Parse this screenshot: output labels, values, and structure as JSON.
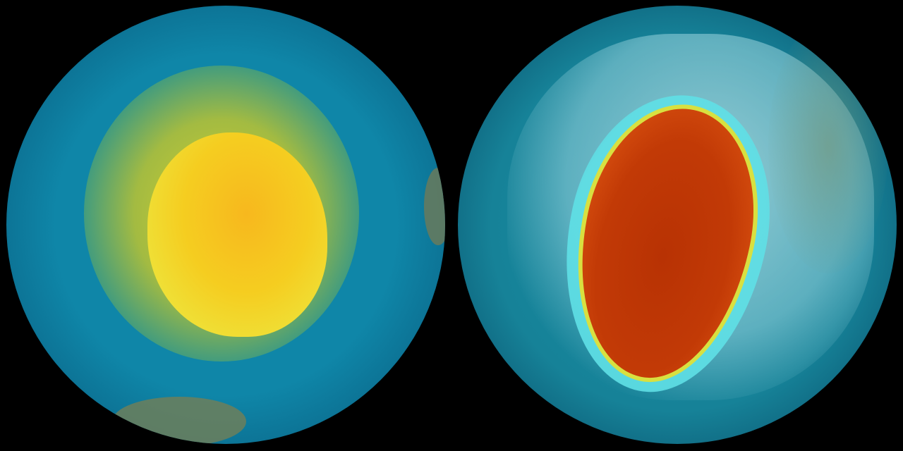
{
  "colors": {
    "background": "#000000",
    "ocean_left": "#0f86a8",
    "yellow_halo": "#c9c82a",
    "antarctica_core": "#f5d21a",
    "ocean_right": "#168298",
    "ice_land": "#a9dce0",
    "cyan_ring": "#5fe0e6",
    "red_core": "#c23a06",
    "orange_edge": "#e06010",
    "continent_land": "#6d7f5a"
  }
}
